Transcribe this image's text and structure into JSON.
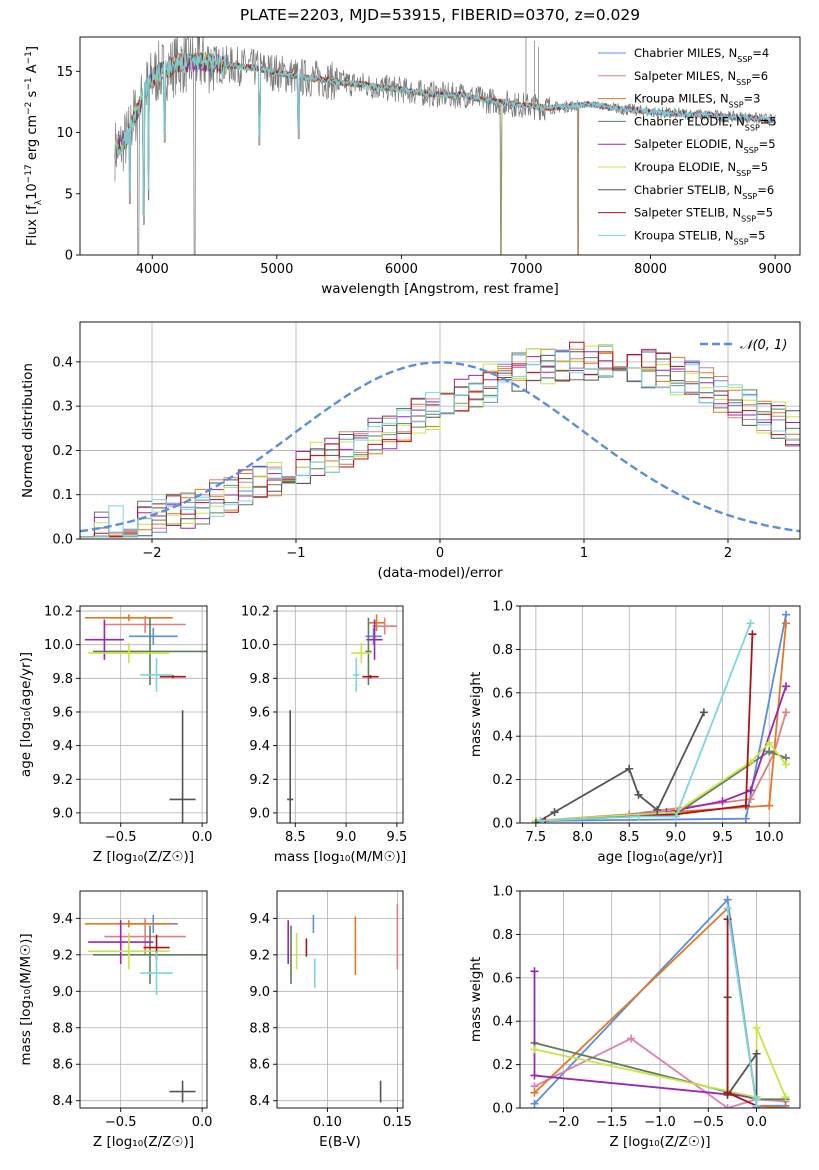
{
  "figure_title": "PLATE=2203, MJD=53915, FIBERID=0370, z=0.029",
  "colors": {
    "Chabrier MILES": "#5b8ee0",
    "Salpeter MILES": "#e07f7f",
    "Kroupa MILES": "#e37a23",
    "Chabrier ELODIE": "#5e7e5e",
    "Salpeter ELODIE": "#9a26b8",
    "Kroupa ELODIE": "#c8e643",
    "Chabrier STELIB": "#555555",
    "Salpeter STELIB": "#b0121a",
    "Kroupa STELIB": "#7ad7e0",
    "Z_Salpeter_MILES": "#e37fb5",
    "gaussian": "#5b8ee0",
    "data_spectrum": "#7a7a7a"
  },
  "chart_data": [
    {
      "id": "spectrum",
      "type": "line",
      "xlabel": "wavelength [Angstrom, rest frame]",
      "ylabel": "Flux [f",
      "ylabel_parts": [
        "Flux [f",
        "λ",
        "10",
        "−17",
        " erg cm",
        "−2",
        " s",
        "−1",
        " A",
        "−1",
        "]"
      ],
      "xlim": [
        3420,
        9200
      ],
      "ylim": [
        0,
        17.8
      ],
      "xticks": [
        4000,
        5000,
        6000,
        7000,
        8000,
        9000
      ],
      "yticks": [
        0,
        5,
        10,
        15
      ],
      "grid": false,
      "legend_position": "top-right",
      "legend": [
        {
          "prefix": "Chabrier MILES, N",
          "sub": "SSP",
          "suffix": "=4",
          "color_key": "Chabrier MILES"
        },
        {
          "prefix": "Salpeter MILES, N",
          "sub": "SSP",
          "suffix": "=6",
          "color_key": "Salpeter MILES"
        },
        {
          "prefix": "Kroupa MILES, N",
          "sub": "SSP",
          "suffix": "=3",
          "color_key": "Kroupa MILES"
        },
        {
          "prefix": "Chabrier ELODIE, N",
          "sub": "SSP",
          "suffix": "=5",
          "color_key": "Chabrier ELODIE"
        },
        {
          "prefix": "Salpeter ELODIE, N",
          "sub": "SSP",
          "suffix": "=5",
          "color_key": "Salpeter ELODIE"
        },
        {
          "prefix": "Kroupa ELODIE, N",
          "sub": "SSP",
          "suffix": "=5",
          "color_key": "Kroupa ELODIE"
        },
        {
          "prefix": "Chabrier STELIB, N",
          "sub": "SSP",
          "suffix": "=6",
          "color_key": "Chabrier STELIB"
        },
        {
          "prefix": "Salpeter STELIB, N",
          "sub": "SSP",
          "suffix": "=5",
          "color_key": "Salpeter STELIB"
        },
        {
          "prefix": "Kroupa STELIB, N",
          "sub": "SSP",
          "suffix": "=5",
          "color_key": "Kroupa STELIB"
        }
      ],
      "continuum_points": {
        "x": [
          3700,
          3750,
          3800,
          3850,
          3900,
          3950,
          4000,
          4050,
          4100,
          4150,
          4200,
          4300,
          4400,
          4500,
          4600,
          4700,
          4800,
          4900,
          5000,
          5100,
          5200,
          5300,
          5400,
          5500,
          5600,
          5700,
          5800,
          5900,
          6000,
          6100,
          6200,
          6300,
          6400,
          6500,
          6600,
          6700,
          6800,
          6900,
          7000,
          7100,
          7200,
          7300,
          7400,
          7500,
          7600,
          7700,
          7800,
          7900,
          8000,
          8100,
          8200,
          8300,
          8400,
          8500,
          8600,
          8700,
          8800,
          8900,
          9000
        ],
        "y": [
          8.6,
          8.9,
          9.6,
          11.2,
          12.2,
          13.6,
          14.4,
          14.9,
          15.1,
          15.3,
          15.6,
          15.7,
          15.8,
          15.6,
          15.5,
          15.4,
          15.3,
          15.1,
          14.9,
          14.7,
          14.5,
          14.4,
          14.3,
          14.1,
          14.0,
          13.9,
          13.7,
          13.6,
          13.5,
          13.3,
          13.2,
          13.1,
          13.0,
          13.1,
          12.8,
          12.6,
          12.5,
          12.3,
          12.2,
          12.1,
          12.0,
          12.1,
          12.2,
          12.3,
          12.2,
          12.0,
          11.9,
          11.8,
          11.7,
          11.6,
          11.55,
          11.5,
          11.45,
          11.4,
          11.3,
          11.25,
          11.2,
          11.1,
          11.0
        ]
      },
      "absorption_features": [
        {
          "x": 3820,
          "y": 4.2
        },
        {
          "x": 3889,
          "y": 0.0
        },
        {
          "x": 3933,
          "y": 2.5
        },
        {
          "x": 3970,
          "y": 4.5
        },
        {
          "x": 4101,
          "y": 9.2
        },
        {
          "x": 4340,
          "y": 0.0
        },
        {
          "x": 4861,
          "y": 9.0
        },
        {
          "x": 5175,
          "y": 9.5
        },
        {
          "x": 6800,
          "y": 0.0
        },
        {
          "x": 7420,
          "y": 0.0
        }
      ]
    },
    {
      "id": "residual_hist",
      "type": "histogram",
      "xlabel": "(data-model)/error",
      "ylabel": "Normed distribution",
      "xlim": [
        -2.5,
        2.5
      ],
      "ylim": [
        0,
        0.49
      ],
      "xticks": [
        -2,
        -1,
        0,
        1,
        2
      ],
      "yticks": [
        0.0,
        0.1,
        0.2,
        0.3,
        0.4
      ],
      "grid": true,
      "bin_edges_start": -2.5,
      "bin_width": 0.1,
      "gaussian_label": "𝒩(0, 1)",
      "legend_position": "top-right",
      "base_values": [
        0.022,
        0.026,
        0.032,
        0.038,
        0.045,
        0.05,
        0.058,
        0.066,
        0.078,
        0.09,
        0.1,
        0.112,
        0.126,
        0.138,
        0.15,
        0.162,
        0.178,
        0.19,
        0.205,
        0.22,
        0.232,
        0.248,
        0.262,
        0.275,
        0.292,
        0.31,
        0.325,
        0.34,
        0.352,
        0.366,
        0.376,
        0.386,
        0.39,
        0.396,
        0.4,
        0.402,
        0.4,
        0.398,
        0.392,
        0.386,
        0.38,
        0.37,
        0.358,
        0.345,
        0.33,
        0.316,
        0.3,
        0.282,
        0.265,
        0.248
      ],
      "series_names": [
        "Chabrier MILES",
        "Salpeter MILES",
        "Kroupa MILES",
        "Chabrier ELODIE",
        "Salpeter ELODIE",
        "Kroupa ELODIE",
        "Chabrier STELIB",
        "Salpeter STELIB",
        "Kroupa STELIB"
      ]
    },
    {
      "id": "age_vs_Z",
      "type": "scatter",
      "xlabel": "Z [log₁₀(Z/Z☉)]",
      "ylabel": "age  [log₁₀(age/yr)]",
      "xlim": [
        -0.75,
        0.03
      ],
      "ylim": [
        8.94,
        10.23
      ],
      "xticks": [
        -0.5,
        0.0
      ],
      "xtick_labels": [
        "−0.5",
        "0.0"
      ],
      "yticks": [
        9.0,
        9.2,
        9.4,
        9.6,
        9.8,
        10.0,
        10.2
      ],
      "grid": true,
      "points": [
        {
          "series": "Chabrier MILES",
          "x": -0.3,
          "y": 10.05,
          "xerr": 0.15,
          "yerr": 0.05
        },
        {
          "series": "Salpeter MILES",
          "x": -0.35,
          "y": 10.12,
          "xerr": 0.25,
          "yerr": 0.05
        },
        {
          "series": "Kroupa MILES",
          "x": -0.45,
          "y": 10.16,
          "xerr": 0.27,
          "yerr": 0.02
        },
        {
          "series": "Chabrier ELODIE",
          "x": -0.32,
          "y": 9.96,
          "xerr": 0.35,
          "yerr": 0.2
        },
        {
          "series": "Salpeter ELODIE",
          "x": -0.6,
          "y": 10.03,
          "xerr": 0.12,
          "yerr": 0.12
        },
        {
          "series": "Kroupa ELODIE",
          "x": -0.45,
          "y": 9.95,
          "xerr": 0.25,
          "yerr": 0.06
        },
        {
          "series": "Chabrier STELIB",
          "x": -0.12,
          "y": 9.08,
          "xerr": 0.08,
          "yerr": 0.53
        },
        {
          "series": "Salpeter STELIB",
          "x": -0.18,
          "y": 9.81,
          "xerr": 0.08,
          "yerr": 0.01
        },
        {
          "series": "Kroupa STELIB",
          "x": -0.28,
          "y": 9.82,
          "xerr": 0.1,
          "yerr": 0.1
        }
      ]
    },
    {
      "id": "age_vs_mass",
      "type": "scatter",
      "xlabel": "mass [log₁₀(M/M☉)]",
      "ylabel": "",
      "xlim": [
        8.32,
        9.56
      ],
      "ylim": [
        8.94,
        10.23
      ],
      "xticks": [
        8.5,
        9.0,
        9.5
      ],
      "yticks": [
        9.0,
        9.2,
        9.4,
        9.6,
        9.8,
        10.0,
        10.2
      ],
      "grid": true,
      "points": [
        {
          "series": "Chabrier MILES",
          "x": 9.27,
          "y": 10.05,
          "xerr": 0.08,
          "yerr": 0.05
        },
        {
          "series": "Salpeter MILES",
          "x": 9.38,
          "y": 10.11,
          "xerr": 0.12,
          "yerr": 0.05
        },
        {
          "series": "Kroupa MILES",
          "x": 9.3,
          "y": 10.13,
          "xerr": 0.08,
          "yerr": 0.05
        },
        {
          "series": "Chabrier ELODIE",
          "x": 9.22,
          "y": 9.96,
          "xerr": 0.03,
          "yerr": 0.2
        },
        {
          "series": "Salpeter ELODIE",
          "x": 9.28,
          "y": 10.03,
          "xerr": 0.08,
          "yerr": 0.12
        },
        {
          "series": "Kroupa ELODIE",
          "x": 9.15,
          "y": 9.95,
          "xerr": 0.1,
          "yerr": 0.06
        },
        {
          "series": "Chabrier STELIB",
          "x": 8.45,
          "y": 9.08,
          "xerr": 0.03,
          "yerr": 0.53
        },
        {
          "series": "Salpeter STELIB",
          "x": 9.24,
          "y": 9.81,
          "xerr": 0.08,
          "yerr": 0.01
        },
        {
          "series": "Kroupa STELIB",
          "x": 9.1,
          "y": 9.82,
          "xerr": 0.03,
          "yerr": 0.1
        }
      ]
    },
    {
      "id": "massweight_vs_age",
      "type": "line",
      "xlabel": "age  [log₁₀(age/yr)]",
      "ylabel": "mass weight",
      "xlim": [
        7.33,
        10.33
      ],
      "ylim": [
        0.0,
        1.0
      ],
      "xticks": [
        7.5,
        8.0,
        8.5,
        9.0,
        9.5,
        10.0
      ],
      "yticks": [
        0.0,
        0.2,
        0.4,
        0.6,
        0.8,
        1.0
      ],
      "grid": true,
      "series": [
        {
          "name": "Chabrier MILES",
          "x": [
            7.6,
            9.75,
            10.18
          ],
          "y": [
            0.01,
            0.02,
            0.96
          ]
        },
        {
          "name": "Salpeter MILES",
          "x": [
            7.5,
            8.5,
            9.8,
            10.05,
            10.18
          ],
          "y": [
            0.01,
            0.04,
            0.11,
            0.32,
            0.51
          ]
        },
        {
          "name": "Kroupa MILES",
          "x": [
            7.6,
            10.0,
            10.18
          ],
          "y": [
            0.01,
            0.08,
            0.92
          ]
        },
        {
          "name": "Chabrier ELODIE",
          "x": [
            7.5,
            9.0,
            10.0,
            10.18
          ],
          "y": [
            0.01,
            0.04,
            0.33,
            0.3
          ]
        },
        {
          "name": "Salpeter ELODIE",
          "x": [
            7.6,
            8.9,
            9.5,
            9.8,
            10.18
          ],
          "y": [
            0.01,
            0.05,
            0.1,
            0.15,
            0.63
          ]
        },
        {
          "name": "Kroupa ELODIE",
          "x": [
            7.5,
            9.0,
            9.8,
            10.0,
            10.18
          ],
          "y": [
            0.01,
            0.05,
            0.28,
            0.37,
            0.27
          ]
        },
        {
          "name": "Chabrier STELIB",
          "x": [
            7.5,
            7.7,
            8.5,
            8.6,
            8.8,
            9.3
          ],
          "y": [
            0.0,
            0.05,
            0.25,
            0.13,
            0.06,
            0.51
          ]
        },
        {
          "name": "Salpeter STELIB",
          "x": [
            7.6,
            9.0,
            9.75,
            9.82
          ],
          "y": [
            0.01,
            0.04,
            0.08,
            0.87
          ]
        },
        {
          "name": "Kroupa STELIB",
          "x": [
            7.55,
            8.6,
            9.0,
            9.8
          ],
          "y": [
            0.01,
            0.03,
            0.03,
            0.92
          ]
        }
      ]
    },
    {
      "id": "mass_vs_Z",
      "type": "scatter",
      "xlabel": "Z [log₁₀(Z/Z☉)]",
      "ylabel": "mass [log₁₀(M/M☉)]",
      "xlim": [
        -0.75,
        0.03
      ],
      "ylim": [
        8.36,
        9.55
      ],
      "xticks": [
        -0.5,
        0.0
      ],
      "xtick_labels": [
        "−0.5",
        "0.0"
      ],
      "yticks": [
        8.4,
        8.6,
        8.8,
        9.0,
        9.2,
        9.4
      ],
      "grid": true,
      "points": [
        {
          "series": "Chabrier MILES",
          "x": -0.3,
          "y": 9.37,
          "xerr": 0.15,
          "yerr": 0.05
        },
        {
          "series": "Salpeter MILES",
          "x": -0.35,
          "y": 9.3,
          "xerr": 0.25,
          "yerr": 0.1
        },
        {
          "series": "Kroupa MILES",
          "x": -0.45,
          "y": 9.37,
          "xerr": 0.27,
          "yerr": 0.02
        },
        {
          "series": "Chabrier ELODIE",
          "x": -0.32,
          "y": 9.2,
          "xerr": 0.35,
          "yerr": 0.16
        },
        {
          "series": "Salpeter ELODIE",
          "x": -0.5,
          "y": 9.27,
          "xerr": 0.2,
          "yerr": 0.12
        },
        {
          "series": "Kroupa ELODIE",
          "x": -0.45,
          "y": 9.22,
          "xerr": 0.25,
          "yerr": 0.1
        },
        {
          "series": "Chabrier STELIB",
          "x": -0.12,
          "y": 8.45,
          "xerr": 0.08,
          "yerr": 0.06
        },
        {
          "series": "Salpeter STELIB",
          "x": -0.28,
          "y": 9.24,
          "xerr": 0.08,
          "yerr": 0.07
        },
        {
          "series": "Kroupa STELIB",
          "x": -0.28,
          "y": 9.1,
          "xerr": 0.1,
          "yerr": 0.12
        }
      ]
    },
    {
      "id": "mass_vs_ebv",
      "type": "scatter",
      "xlabel": "E(B-V)",
      "ylabel": "",
      "xlim": [
        0.064,
        0.154
      ],
      "ylim": [
        8.36,
        9.55
      ],
      "xticks": [
        0.1,
        0.15
      ],
      "xtick_labels": [
        "0.10",
        "0.15"
      ],
      "yticks": [
        8.4,
        8.6,
        8.8,
        9.0,
        9.2,
        9.4
      ],
      "grid": true,
      "points": [
        {
          "series": "Chabrier MILES",
          "x": 0.09,
          "y": 9.37,
          "xerr": 0.0,
          "yerr": 0.05
        },
        {
          "series": "Salpeter MILES",
          "x": 0.15,
          "y": 9.3,
          "xerr": 0.0,
          "yerr": 0.18
        },
        {
          "series": "Kroupa MILES",
          "x": 0.12,
          "y": 9.25,
          "xerr": 0.0,
          "yerr": 0.16
        },
        {
          "series": "Chabrier ELODIE",
          "x": 0.074,
          "y": 9.2,
          "xerr": 0.0,
          "yerr": 0.16
        },
        {
          "series": "Salpeter ELODIE",
          "x": 0.072,
          "y": 9.27,
          "xerr": 0.0,
          "yerr": 0.12
        },
        {
          "series": "Kroupa ELODIE",
          "x": 0.078,
          "y": 9.22,
          "xerr": 0.0,
          "yerr": 0.1
        },
        {
          "series": "Chabrier STELIB",
          "x": 0.138,
          "y": 8.45,
          "xerr": 0.0,
          "yerr": 0.06
        },
        {
          "series": "Salpeter STELIB",
          "x": 0.085,
          "y": 9.24,
          "xerr": 0.0,
          "yerr": 0.05
        },
        {
          "series": "Kroupa STELIB",
          "x": 0.091,
          "y": 9.1,
          "xerr": 0.0,
          "yerr": 0.08
        }
      ]
    },
    {
      "id": "massweight_vs_Z",
      "type": "line",
      "xlabel": "Z [log₁₀(Z/Z☉)]",
      "ylabel": "mass weight",
      "xlim": [
        -2.45,
        0.45
      ],
      "ylim": [
        0.0,
        1.0
      ],
      "xticks": [
        -2.0,
        -1.5,
        -1.0,
        -0.5,
        0.0
      ],
      "xtick_labels": [
        "−2.0",
        "−1.5",
        "−1.0",
        "−0.5",
        "0.0"
      ],
      "yticks": [
        0.0,
        0.2,
        0.4,
        0.6,
        0.8,
        1.0
      ],
      "grid": true,
      "series": [
        {
          "name": "Chabrier MILES",
          "x": [
            -2.3,
            -0.3,
            0.0,
            0.3
          ],
          "y": [
            0.02,
            0.96,
            0.01,
            0.01
          ]
        },
        {
          "name": "Z_Salpeter_MILES",
          "x": [
            -2.3,
            -1.3,
            -0.3,
            0.0,
            0.3
          ],
          "y": [
            0.1,
            0.32,
            0.0,
            0.04,
            0.03
          ]
        },
        {
          "name": "Kroupa MILES",
          "x": [
            -2.3,
            -0.3,
            0.0,
            0.3
          ],
          "y": [
            0.07,
            0.92,
            0.01,
            0.0
          ]
        },
        {
          "name": "Chabrier ELODIE",
          "x": [
            -2.3,
            0.0,
            0.3
          ],
          "y": [
            0.3,
            0.04,
            0.04
          ]
        },
        {
          "name": "Salpeter ELODIE",
          "x": [
            -2.3,
            -2.3,
            0.0,
            0.0
          ],
          "y": [
            0.63,
            0.15,
            0.05,
            0.0
          ]
        },
        {
          "name": "Kroupa ELODIE",
          "x": [
            -2.3,
            0.0,
            0.0,
            0.3
          ],
          "y": [
            0.27,
            0.05,
            0.37,
            0.05
          ]
        },
        {
          "name": "Chabrier STELIB",
          "x": [
            -0.3,
            -0.3,
            0.0,
            0.0
          ],
          "y": [
            0.51,
            0.06,
            0.25,
            0.0
          ]
        },
        {
          "name": "Salpeter STELIB",
          "x": [
            -0.3,
            -0.3,
            0.0
          ],
          "y": [
            0.87,
            0.07,
            0.01
          ]
        },
        {
          "name": "Kroupa STELIB",
          "x": [
            -0.3,
            0.0,
            0.0
          ],
          "y": [
            0.92,
            0.01,
            0.04
          ]
        }
      ]
    }
  ]
}
